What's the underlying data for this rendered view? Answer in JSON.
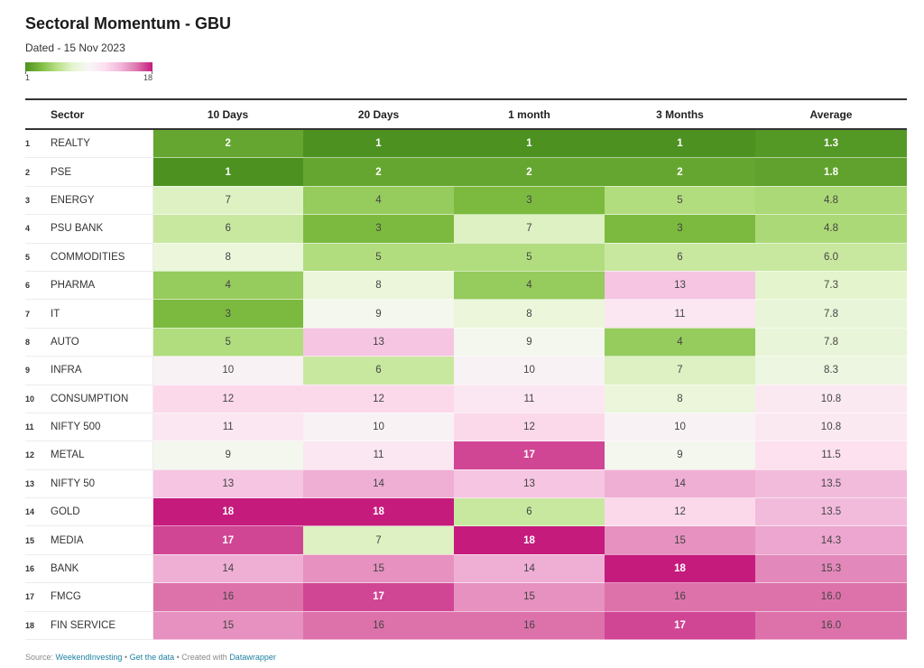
{
  "title": "Sectoral Momentum - GBU",
  "subtitle": "Dated - 15 Nov 2023",
  "legend": {
    "min_label": "1",
    "max_label": "18"
  },
  "colors": {
    "low": "#4d9221",
    "mid": "#f7f7f7",
    "high": "#c51b7d",
    "scale": [
      "#4d9221",
      "#7fbc41",
      "#b8e186",
      "#e6f5d0",
      "#f7f7f7",
      "#fde0ef",
      "#f1b6da",
      "#de77ae",
      "#c51b7d"
    ]
  },
  "chart_data": {
    "type": "table",
    "color_domain": [
      1,
      18
    ],
    "columns": [
      "Sector",
      "10 Days",
      "20 Days",
      "1 month",
      "3 Months",
      "Average"
    ],
    "rows": [
      {
        "rank": "1",
        "sector": "REALTY",
        "values": [
          2,
          1,
          1,
          1
        ],
        "average": "1.3"
      },
      {
        "rank": "2",
        "sector": "PSE",
        "values": [
          1,
          2,
          2,
          2
        ],
        "average": "1.8"
      },
      {
        "rank": "3",
        "sector": "ENERGY",
        "values": [
          7,
          4,
          3,
          5
        ],
        "average": "4.8"
      },
      {
        "rank": "4",
        "sector": "PSU BANK",
        "values": [
          6,
          3,
          7,
          3
        ],
        "average": "4.8"
      },
      {
        "rank": "5",
        "sector": "COMMODITIES",
        "values": [
          8,
          5,
          5,
          6
        ],
        "average": "6.0"
      },
      {
        "rank": "6",
        "sector": "PHARMA",
        "values": [
          4,
          8,
          4,
          13
        ],
        "average": "7.3"
      },
      {
        "rank": "7",
        "sector": "IT",
        "values": [
          3,
          9,
          8,
          11
        ],
        "average": "7.8"
      },
      {
        "rank": "8",
        "sector": "AUTO",
        "values": [
          5,
          13,
          9,
          4
        ],
        "average": "7.8"
      },
      {
        "rank": "9",
        "sector": "INFRA",
        "values": [
          10,
          6,
          10,
          7
        ],
        "average": "8.3"
      },
      {
        "rank": "10",
        "sector": "CONSUMPTION",
        "values": [
          12,
          12,
          11,
          8
        ],
        "average": "10.8"
      },
      {
        "rank": "11",
        "sector": "NIFTY 500",
        "values": [
          11,
          10,
          12,
          10
        ],
        "average": "10.8"
      },
      {
        "rank": "12",
        "sector": "METAL",
        "values": [
          9,
          11,
          17,
          9
        ],
        "average": "11.5"
      },
      {
        "rank": "13",
        "sector": "NIFTY 50",
        "values": [
          13,
          14,
          13,
          14
        ],
        "average": "13.5"
      },
      {
        "rank": "14",
        "sector": "GOLD",
        "values": [
          18,
          18,
          6,
          12
        ],
        "average": "13.5"
      },
      {
        "rank": "15",
        "sector": "MEDIA",
        "values": [
          17,
          7,
          18,
          15
        ],
        "average": "14.3"
      },
      {
        "rank": "16",
        "sector": "BANK",
        "values": [
          14,
          15,
          14,
          18
        ],
        "average": "15.3"
      },
      {
        "rank": "17",
        "sector": "FMCG",
        "values": [
          16,
          17,
          15,
          16
        ],
        "average": "16.0"
      },
      {
        "rank": "18",
        "sector": "FIN SERVICE",
        "values": [
          15,
          16,
          16,
          17
        ],
        "average": "16.0"
      }
    ]
  },
  "footer": {
    "prefix": "Source: ",
    "source": "WeekendInvesting",
    "sep1": " • ",
    "get_data": "Get the data",
    "sep2": " • Created with ",
    "tool": "Datawrapper"
  }
}
